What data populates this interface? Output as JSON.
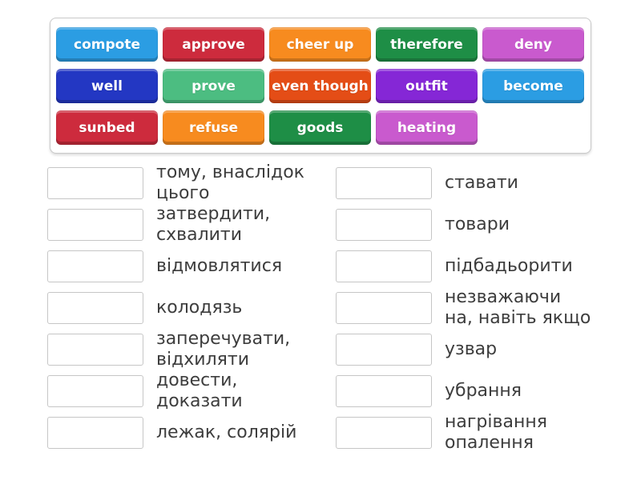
{
  "tray": {
    "rows": [
      {
        "chips": [
          {
            "label": "compote",
            "color": "#2b9de3"
          },
          {
            "label": "approve",
            "color": "#cd2b3d"
          },
          {
            "label": "cheer up",
            "color": "#f78b1f"
          },
          {
            "label": "therefore",
            "color": "#1e8e46"
          },
          {
            "label": "deny",
            "color": "#c95ace"
          }
        ]
      },
      {
        "chips": [
          {
            "label": "well",
            "color": "#2337c3"
          },
          {
            "label": "prove",
            "color": "#4cbd81"
          },
          {
            "label": "even though",
            "color": "#e44d16"
          },
          {
            "label": "outfit",
            "color": "#8527d6"
          },
          {
            "label": "become",
            "color": "#2b9de3"
          }
        ]
      },
      {
        "chips": [
          {
            "label": "sunbed",
            "color": "#cd2b3d"
          },
          {
            "label": "refuse",
            "color": "#f78b1f"
          },
          {
            "label": "goods",
            "color": "#1e8e46"
          },
          {
            "label": "heating",
            "color": "#c95ace"
          }
        ]
      }
    ]
  },
  "match": {
    "left": [
      {
        "definition": "тому, внаслідок\nцього"
      },
      {
        "definition": "затвердити,\nсхвалити"
      },
      {
        "definition": "відмовлятися"
      },
      {
        "definition": "колодязь"
      },
      {
        "definition": "заперечувати,\nвідхиляти"
      },
      {
        "definition": "довести,\nдоказати"
      },
      {
        "definition": "лежак, солярій"
      }
    ],
    "right": [
      {
        "definition": "ставати"
      },
      {
        "definition": "товари"
      },
      {
        "definition": "підбадьорити"
      },
      {
        "definition": "незважаючи\nна, навіть якщо"
      },
      {
        "definition": "узвар"
      },
      {
        "definition": "убрання"
      },
      {
        "definition": "нагрівання\nопалення"
      }
    ]
  }
}
